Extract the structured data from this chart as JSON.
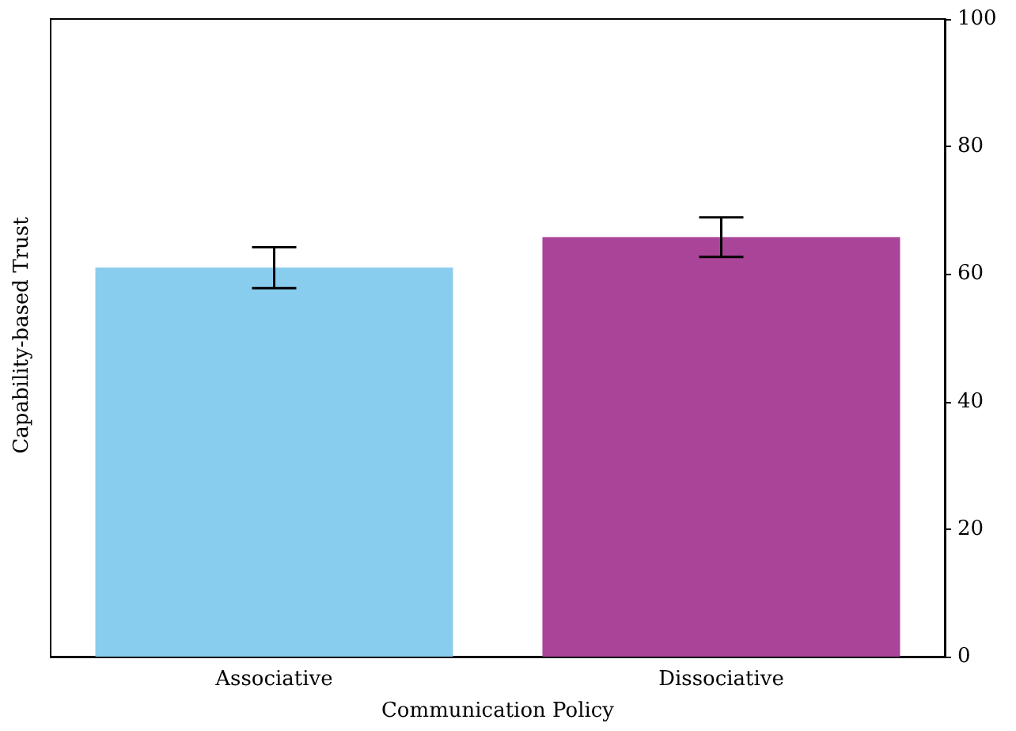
{
  "chart_data": {
    "type": "bar",
    "xlabel": "Communication Policy",
    "ylabel": "Capability-based Trust",
    "categories": [
      "Associative",
      "Dissociative"
    ],
    "values": [
      61.0,
      65.8
    ],
    "colors": [
      "#88ccee",
      "#aa4499"
    ],
    "errors": [
      3.2,
      3.1
    ],
    "ylim": [
      0,
      100
    ],
    "yticks": [
      0,
      20,
      40,
      60,
      80,
      100
    ]
  }
}
